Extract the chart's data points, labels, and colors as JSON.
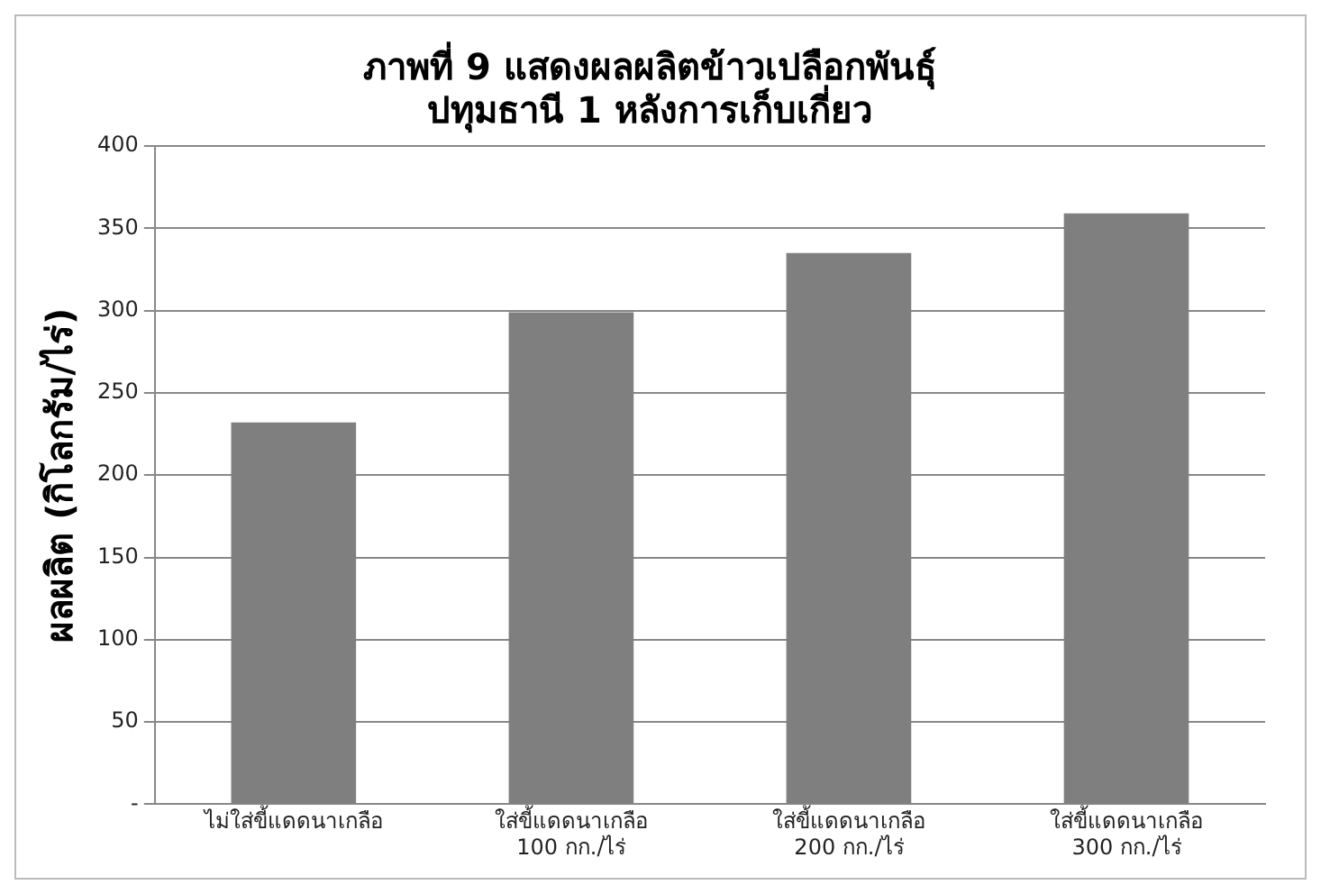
{
  "chart_data": {
    "type": "bar",
    "title": "ภาพที่ 9 แสดงผลผลิตข้าวเปลือกพันธุ์\nปทุมธานี 1 หลังการเก็บเกี่ยว",
    "ylabel": "ผลผลิต (กิโลกรัม/ไร่)",
    "categories": [
      "ไม่ใส่ขี้แดดนาเกลือ",
      "ใส่ขี้แดดนาเกลือ\n100 กก./ไร่",
      "ใส่ขี้แดดนาเกลือ\n200 กก./ไร่",
      "ใส่ขี้แดดนาเกลือ\n300 กก./ไร่"
    ],
    "values": [
      232,
      299,
      335,
      359
    ],
    "color": "#7f7f7f",
    "ylim": [
      0,
      400
    ],
    "yticks": [
      {
        "value": 0,
        "label": "-"
      },
      50,
      100,
      150,
      200,
      250,
      300,
      350,
      400
    ],
    "grid": "y"
  }
}
